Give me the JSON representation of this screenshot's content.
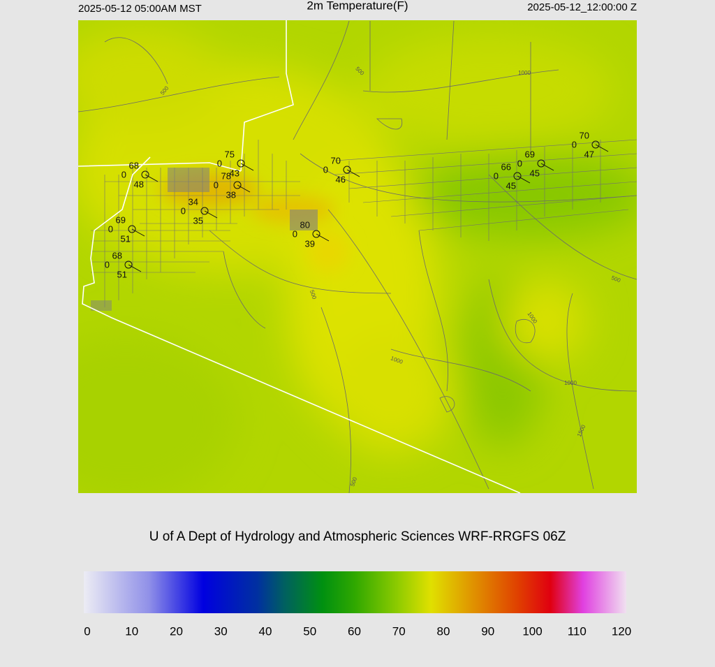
{
  "header": {
    "left": "2025-05-12 05:00AM MST",
    "title": "2m Temperature(F)",
    "right": "2025-05-12_12:00:00 Z"
  },
  "stations": [
    {
      "temp": 68,
      "wind": 0,
      "dewpoint": 48
    },
    {
      "temp": 75,
      "wind": 0,
      "dewpoint": 43
    },
    {
      "temp": 78,
      "wind": 0,
      "dewpoint": 38
    },
    {
      "temp": 34,
      "wind": 0,
      "dewpoint": 35
    },
    {
      "temp": 80,
      "wind": 0,
      "dewpoint": 39
    },
    {
      "temp": 70,
      "wind": 0,
      "dewpoint": 46
    },
    {
      "temp": 69,
      "wind": 0,
      "dewpoint": 51
    },
    {
      "temp": 68,
      "wind": 0,
      "dewpoint": 51
    },
    {
      "temp": 66,
      "wind": 0,
      "dewpoint": 45
    },
    {
      "temp": 69,
      "wind": 0,
      "dewpoint": 45
    },
    {
      "temp": 70,
      "wind": 0,
      "dewpoint": 47
    }
  ],
  "contour_labels": [
    "500",
    "500",
    "500",
    "500",
    "500",
    "1000",
    "1000",
    "1000",
    "1000",
    "1500"
  ],
  "footer": "U of A Dept of Hydrology and Atmospheric Sciences WRF-RRGFS 06Z",
  "colorbar": {
    "range": [
      0,
      120
    ],
    "ticks": [
      0,
      10,
      20,
      30,
      40,
      50,
      60,
      70,
      80,
      90,
      100,
      110,
      120
    ]
  }
}
